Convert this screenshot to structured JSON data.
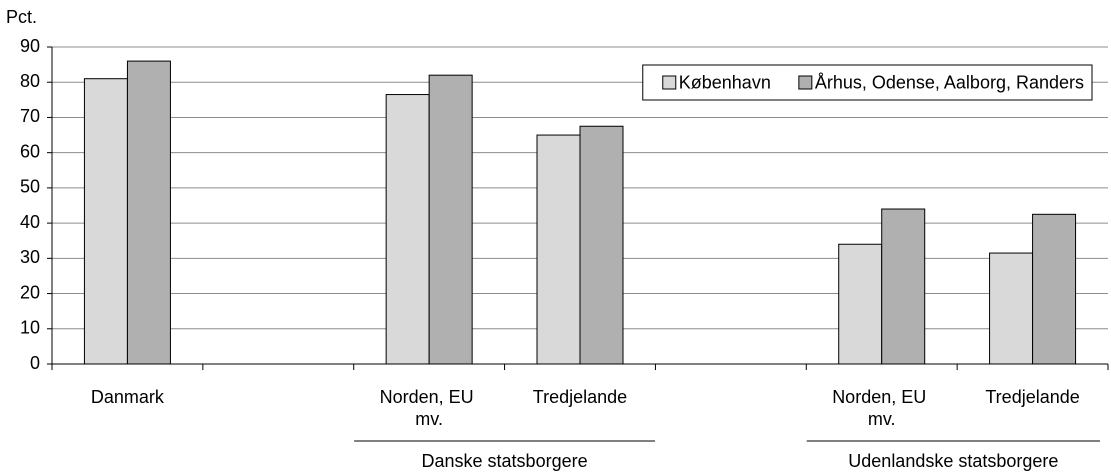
{
  "chart_data": {
    "type": "bar",
    "y_label": "Pct.",
    "categories": [
      "Danmark",
      null,
      "Norden, EU mv.",
      "Tredjelande",
      null,
      "Norden, EU mv.",
      "Tredjelande"
    ],
    "series": [
      {
        "name": "København",
        "color": "#d9d9d9",
        "values": [
          81,
          null,
          76.5,
          65,
          null,
          34,
          31.5
        ]
      },
      {
        "name": "Århus, Odense, Aalborg, Randers",
        "color": "#b0b0b0",
        "values": [
          86,
          null,
          82,
          67.5,
          null,
          44,
          42.5
        ]
      }
    ],
    "groups": [
      "Danske statsborgere",
      "Udenlandske statsborgere"
    ],
    "ylim": [
      0,
      90
    ],
    "yticks": [
      0,
      10,
      20,
      30,
      40,
      50,
      60,
      70,
      80,
      90
    ],
    "grid": true,
    "legend": "top-right"
  }
}
